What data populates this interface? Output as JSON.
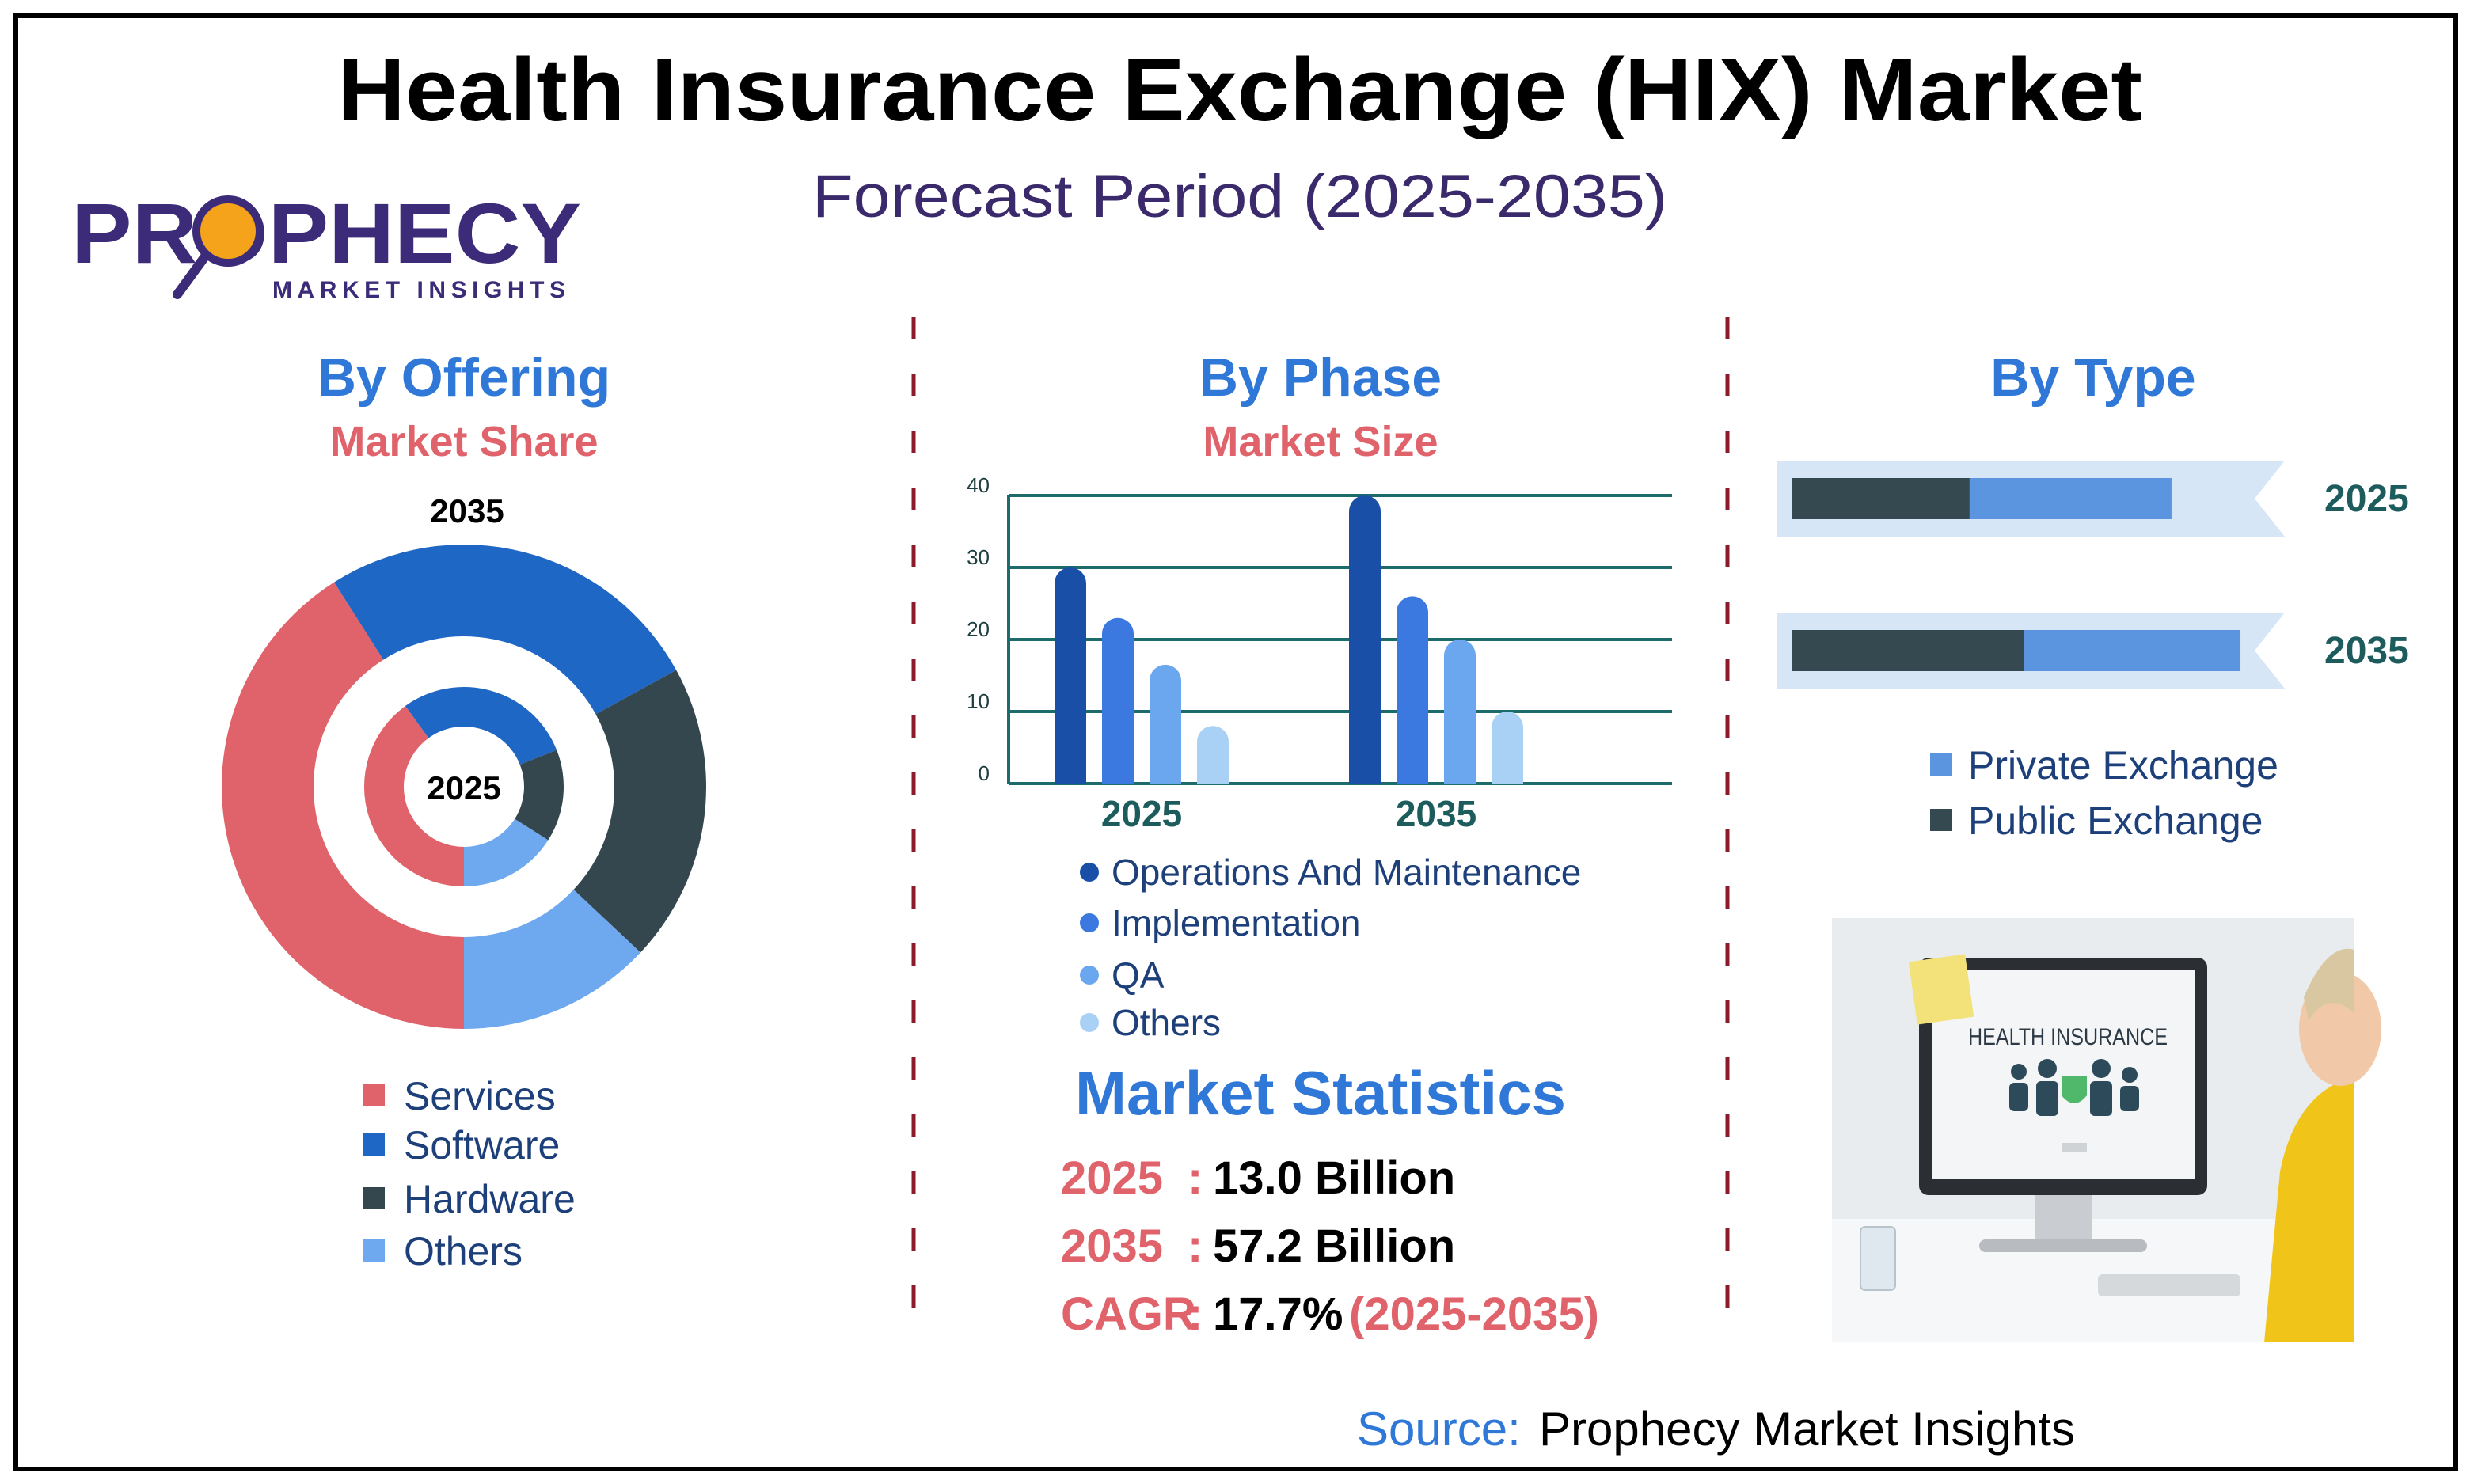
{
  "header": {
    "title": "Health Insurance Exchange (HIX) Market",
    "subtitle": "Forecast Period (2025-2035)"
  },
  "logo": {
    "name": "PROPHECY",
    "tagline": "MARKET INSIGHTS"
  },
  "chart_data": [
    {
      "type": "donut",
      "title": "By Offering",
      "subtitle": "Market Share",
      "categories": [
        "Services",
        "Software",
        "Hardware",
        "Others"
      ],
      "colors": [
        "#e0636b",
        "#1f67c4",
        "#34474e",
        "#6ea8ef"
      ],
      "series": [
        {
          "name": "2035",
          "values": [
            41,
            26,
            20,
            13
          ]
        },
        {
          "name": "2025",
          "values": [
            40,
            29,
            15,
            16
          ]
        }
      ]
    },
    {
      "type": "bar",
      "title": "By Phase",
      "subtitle": "Market Size",
      "categories": [
        "2025",
        "2035"
      ],
      "series": [
        {
          "name": "Operations And Maintenance",
          "color": "#1a4fa8",
          "values": [
            30,
            40
          ]
        },
        {
          "name": "Implementation",
          "color": "#3b78e0",
          "values": [
            23,
            26
          ]
        },
        {
          "name": "QA",
          "color": "#6ba7ef",
          "values": [
            16.5,
            20
          ]
        },
        {
          "name": "Others",
          "color": "#a9d0f5",
          "values": [
            8,
            10
          ]
        }
      ],
      "ylim": [
        0,
        40
      ],
      "yticks": [
        0,
        10,
        20,
        30,
        40
      ],
      "grid": true
    },
    {
      "type": "hbar",
      "title": "By Type",
      "categories": [
        "2025",
        "2035"
      ],
      "series": [
        {
          "name": "Private Exchange",
          "color": "#5b95e0",
          "values": [
            41,
            44
          ]
        },
        {
          "name": "Public Exchange",
          "color": "#344a50",
          "values": [
            36,
            47
          ]
        }
      ],
      "xlim": [
        0,
        100
      ]
    }
  ],
  "market_statistics": {
    "title": "Market Statistics",
    "separator": ":",
    "rows": [
      {
        "label": "2025",
        "value": "13.0 Billion"
      },
      {
        "label": "2035",
        "value": "57.2 Billion"
      },
      {
        "label": "CAGR",
        "value": "17.7%",
        "period": "(2025-2035)"
      }
    ]
  },
  "image": {
    "screen_text": "HEALTH INSURANCE"
  },
  "source": {
    "label": "Source:",
    "name": "Prophecy Market Insights"
  }
}
